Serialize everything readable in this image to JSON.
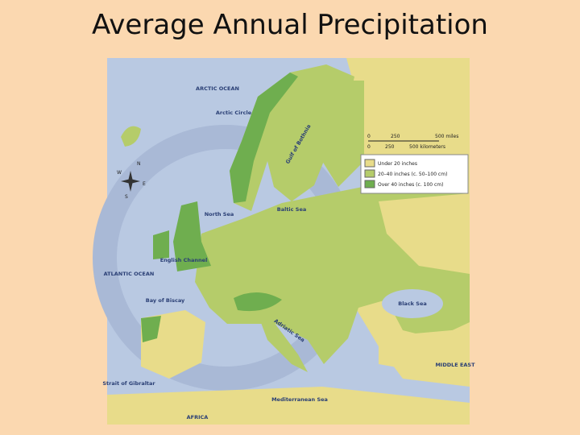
{
  "title": "Average Annual Precipitation",
  "map": {
    "labels": [
      "ARCTIC OCEAN",
      "Arctic Circle",
      "Gulf of Bothnia",
      "North Sea",
      "Baltic Sea",
      "ATLANTIC OCEAN",
      "English Channel",
      "Bay of Biscay",
      "Adriatic Sea",
      "Black Sea",
      "Mediterranean Sea",
      "Strait of Gibraltar",
      "MIDDLE EAST",
      "AFRICA"
    ],
    "compass": [
      "N",
      "W",
      "E",
      "S"
    ]
  },
  "legend": {
    "scale": {
      "miles": [
        "0",
        "250",
        "500 miles"
      ],
      "kilometers": [
        "0",
        "250",
        "500 kilometers"
      ]
    },
    "items": [
      {
        "label": "Under 20 inches",
        "color": "#e8dc8a"
      },
      {
        "label": "20–40 inches (c. 50–100 cm)",
        "color": "#b5cc6a"
      },
      {
        "label": "Over 40 inches (c. 100 cm)",
        "color": "#6fae4f"
      }
    ]
  }
}
